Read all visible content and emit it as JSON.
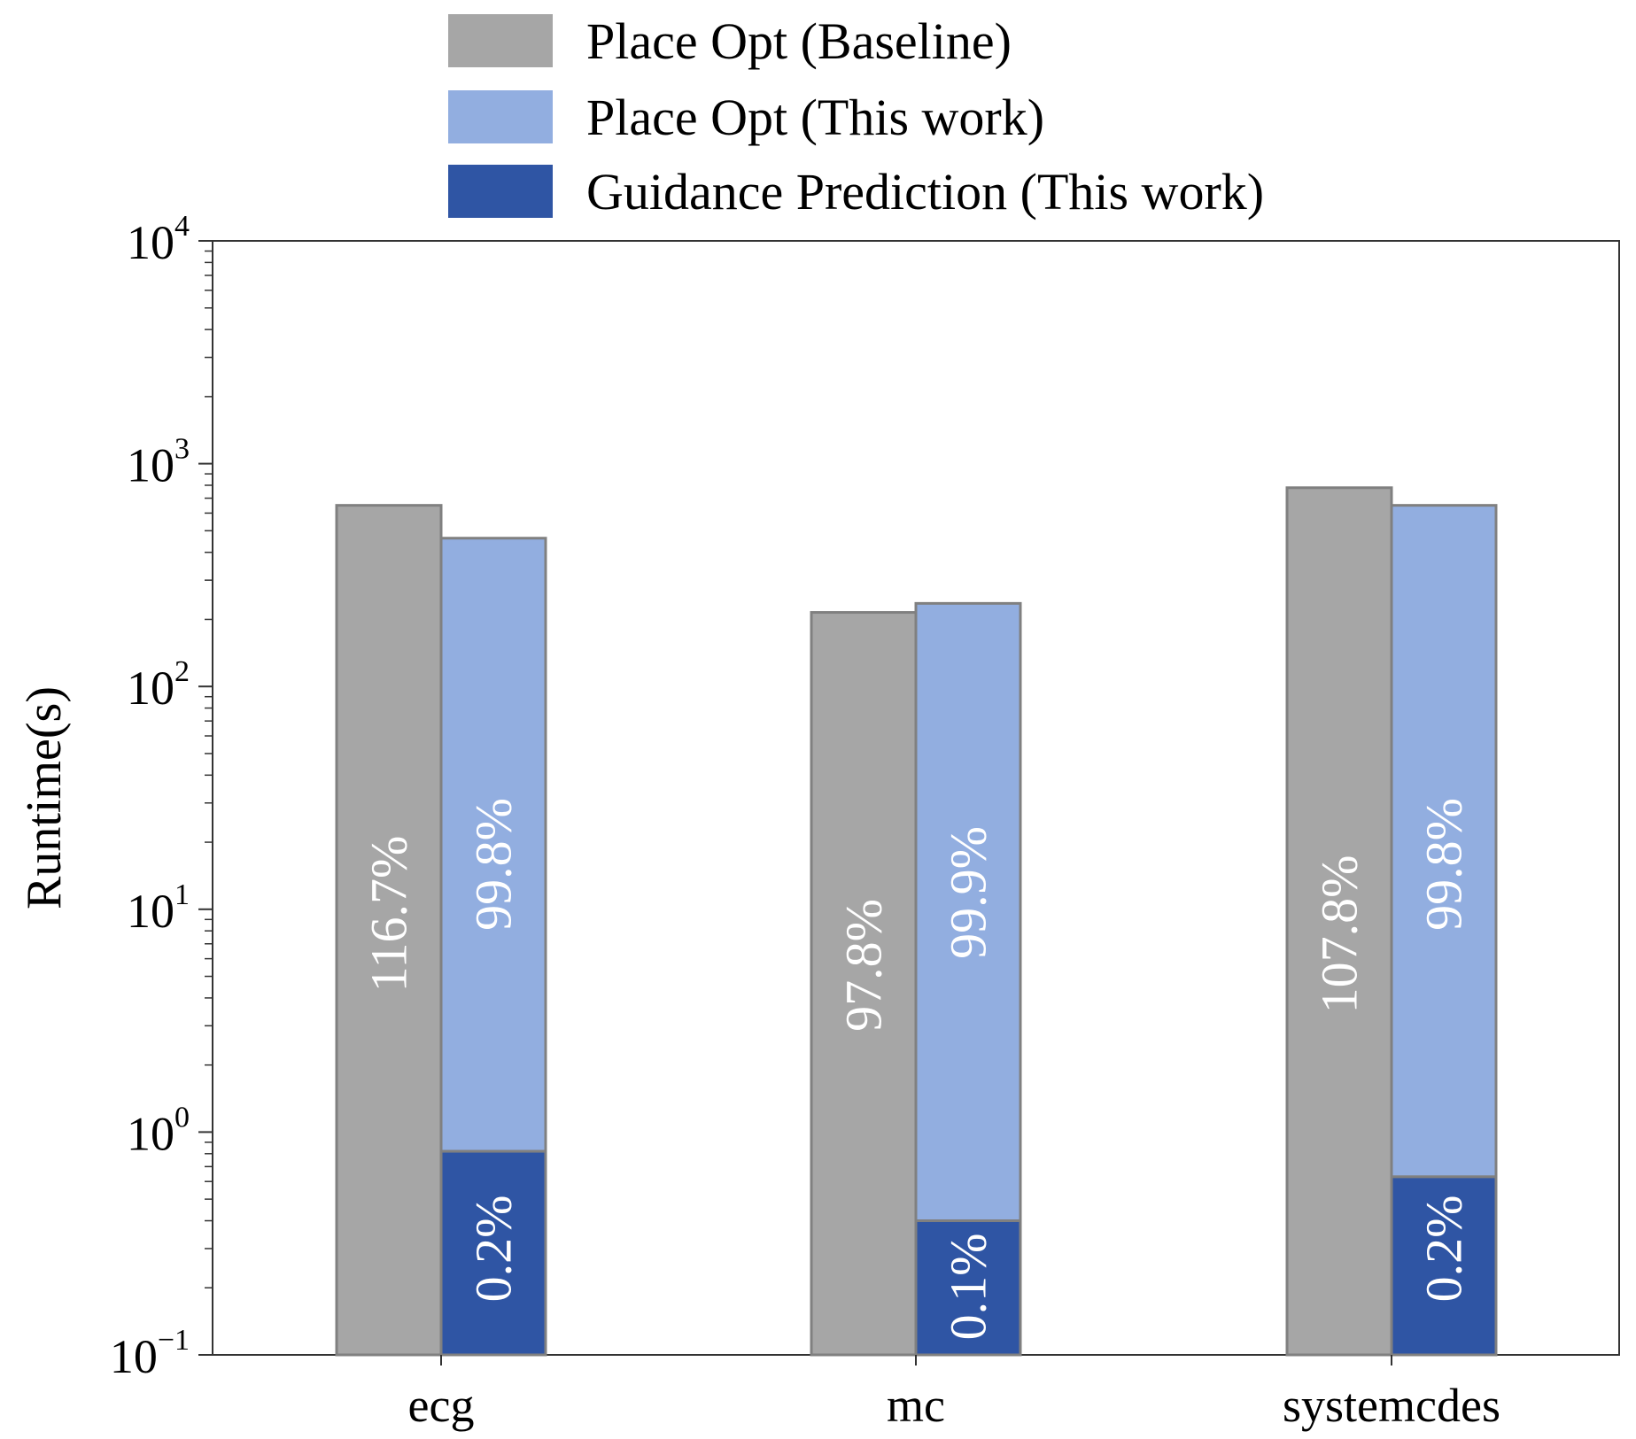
{
  "chart_data": {
    "type": "bar",
    "stacked_series": true,
    "log_scale": true,
    "ylabel": "Runtime(s)",
    "xlabel": "",
    "ylim": [
      0.1,
      10000
    ],
    "y_ticks": [
      {
        "value": 0.1,
        "base": "10",
        "exp": "−1"
      },
      {
        "value": 1,
        "base": "10",
        "exp": "0"
      },
      {
        "value": 10,
        "base": "10",
        "exp": "1"
      },
      {
        "value": 100,
        "base": "10",
        "exp": "2"
      },
      {
        "value": 1000,
        "base": "10",
        "exp": "3"
      },
      {
        "value": 10000,
        "base": "10",
        "exp": "4"
      }
    ],
    "categories": [
      "ecg",
      "mc",
      "systemcdes"
    ],
    "series": [
      {
        "name": "Place Opt (Baseline)",
        "color": "#a6a6a6",
        "values": [
          650,
          215,
          780
        ],
        "labels": [
          "116.7%",
          "97.8%",
          "107.8%"
        ]
      },
      {
        "name": "Place Opt (This work)",
        "color": "#92aee0",
        "values": [
          463,
          236,
          650
        ],
        "labels": [
          "99.8%",
          "99.9%",
          "99.8%"
        ]
      },
      {
        "name": "Guidance Prediction (This work)",
        "color": "#2f55a4",
        "values": [
          0.82,
          0.4,
          0.63
        ],
        "labels": [
          "0.2%",
          "0.1%",
          "0.2%"
        ]
      }
    ],
    "legend_position": "top-center",
    "grid": false,
    "bar_edge_color": "#808080"
  }
}
